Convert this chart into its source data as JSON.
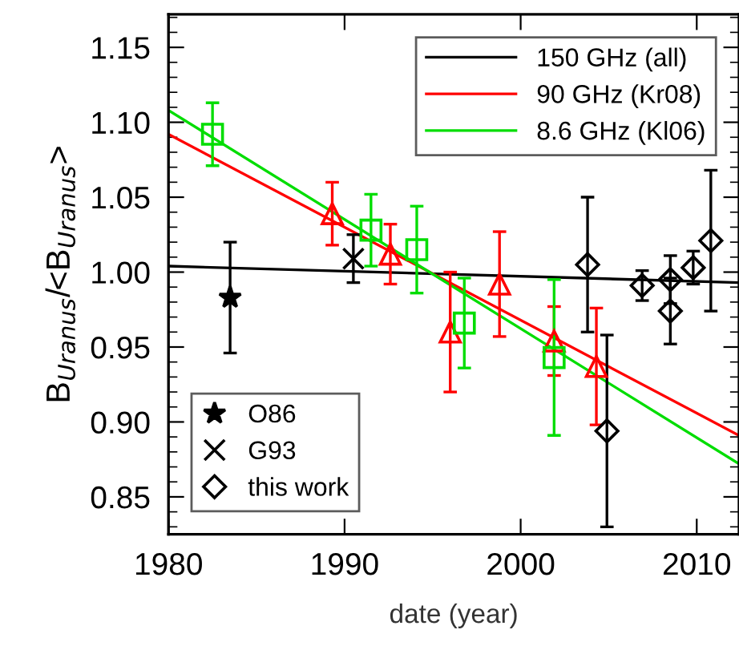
{
  "chart_data": {
    "type": "scatter",
    "xlabel": "date (year)",
    "ylabel": "B$_{Uranus}$/<B$_{Uranus}$>",
    "xlim": [
      1980,
      2012.4
    ],
    "ylim": [
      0.825,
      1.172
    ],
    "xticks": [
      1980,
      1990,
      2000,
      2010
    ],
    "yticks": [
      {
        "value": 0.85,
        "label": "0.85"
      },
      {
        "value": 0.9,
        "label": "0.90"
      },
      {
        "value": 0.95,
        "label": "0.95"
      },
      {
        "value": 1.0,
        "label": "1.00"
      },
      {
        "value": 1.05,
        "label": "1.05"
      },
      {
        "value": 1.1,
        "label": "1.10"
      },
      {
        "value": 1.15,
        "label": "1.15"
      }
    ],
    "grid": false,
    "legend": "top right",
    "series": [
      {
        "name": "150 GHz (all)",
        "type": "line",
        "color": "#000000",
        "x": [
          1980,
          2012.4
        ],
        "values": [
          1.004,
          0.993
        ]
      },
      {
        "name": "90 GHz (Kr08)",
        "type": "line",
        "color": "#ff0000",
        "x": [
          1980,
          2012.4
        ],
        "values": [
          1.092,
          0.891
        ]
      },
      {
        "name": "8.6 GHz (Kl06)",
        "type": "line",
        "color": "#00dd00",
        "x": [
          1980,
          2012.4
        ],
        "values": [
          1.108,
          0.872
        ]
      },
      {
        "marker": "triangle",
        "color": "#ff0000",
        "x": [
          1989.3,
          1992.6,
          1996.0,
          1998.8,
          2001.9,
          2004.3
        ],
        "values": [
          1.039,
          1.012,
          0.96,
          0.992,
          0.954,
          0.937
        ],
        "errors": [
          0.021,
          0.02,
          0.04,
          0.035,
          0.023,
          0.039
        ]
      },
      {
        "marker": "square",
        "color": "#00dd00",
        "x": [
          1982.5,
          1991.5,
          1994.1,
          1996.8,
          2001.9
        ],
        "values": [
          1.092,
          1.028,
          1.015,
          0.966,
          0.943
        ],
        "errors": [
          0.021,
          0.024,
          0.029,
          0.03,
          0.052
        ]
      },
      {
        "name": "O86",
        "marker": "star",
        "color": "#000000",
        "x": [
          1983.5
        ],
        "values": [
          0.983
        ],
        "errors": [
          0.037
        ]
      },
      {
        "name": "G93",
        "marker": "cross",
        "color": "#000000",
        "x": [
          1990.5
        ],
        "values": [
          1.009
        ],
        "errors": [
          0.016
        ]
      },
      {
        "name": "this work",
        "marker": "diamond",
        "color": "#000000",
        "x": [
          2003.8,
          2004.9,
          2006.9,
          2008.5,
          2008.5,
          2009.8,
          2010.8
        ],
        "values": [
          1.005,
          0.894,
          0.991,
          0.995,
          0.974,
          1.003,
          1.021
        ],
        "errors": [
          0.045,
          0.064,
          0.01,
          0.016,
          0.022,
          0.011,
          0.047
        ]
      }
    ]
  }
}
